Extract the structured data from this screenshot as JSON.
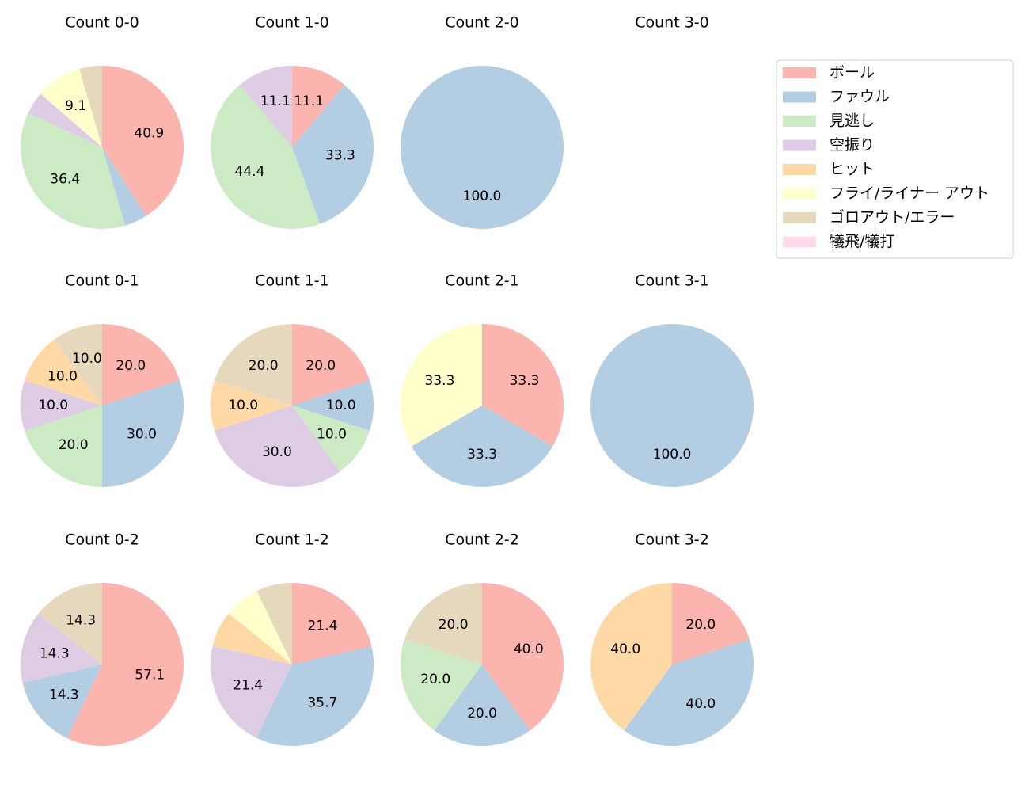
{
  "legend": {
    "position": "top-right",
    "items": [
      {
        "name": "ボール",
        "color": "#fbb4ae"
      },
      {
        "name": "ファウル",
        "color": "#b3cde3"
      },
      {
        "name": "見逃し",
        "color": "#ccebc5"
      },
      {
        "name": "空振り",
        "color": "#decbe4"
      },
      {
        "name": "ヒット",
        "color": "#fed9a6"
      },
      {
        "name": "フライ/ライナー アウト",
        "color": "#ffffcc"
      },
      {
        "name": "ゴロアウト/エラー",
        "color": "#e5d8bd"
      },
      {
        "name": "犠飛/犠打",
        "color": "#fddaec"
      }
    ]
  },
  "chart_data": [
    {
      "type": "pie",
      "title": "Count 0-0",
      "values": [
        40.9,
        4.5,
        36.4,
        4.5,
        0,
        9.1,
        4.5,
        0
      ],
      "labels": [
        "40.9",
        "",
        "36.4",
        "",
        "",
        "9.1",
        "",
        ""
      ]
    },
    {
      "type": "pie",
      "title": "Count 1-0",
      "values": [
        11.1,
        33.3,
        44.4,
        11.1,
        0,
        0,
        0,
        0
      ],
      "labels": [
        "11.1",
        "33.3",
        "44.4",
        "11.1",
        "",
        "",
        "",
        ""
      ]
    },
    {
      "type": "pie",
      "title": "Count 2-0",
      "values": [
        0,
        100,
        0,
        0,
        0,
        0,
        0,
        0
      ],
      "labels": [
        "",
        "100.0",
        "",
        "",
        "",
        "",
        "",
        ""
      ]
    },
    {
      "type": "pie",
      "title": "Count 3-0",
      "values": [
        0,
        0,
        0,
        0,
        0,
        0,
        0,
        0
      ],
      "labels": [
        "",
        "",
        "",
        "",
        "",
        "",
        "",
        ""
      ]
    },
    {
      "type": "pie",
      "title": "Count 0-1",
      "values": [
        20,
        30,
        20,
        10,
        10,
        0,
        10,
        0
      ],
      "labels": [
        "20.0",
        "30.0",
        "20.0",
        "10.0",
        "10.0",
        "",
        "10.0",
        ""
      ]
    },
    {
      "type": "pie",
      "title": "Count 1-1",
      "values": [
        20,
        10,
        10,
        30,
        10,
        0,
        20,
        0
      ],
      "labels": [
        "20.0",
        "10.0",
        "10.0",
        "30.0",
        "10.0",
        "",
        "20.0",
        ""
      ]
    },
    {
      "type": "pie",
      "title": "Count 2-1",
      "values": [
        33.3,
        33.3,
        0,
        0,
        0,
        33.3,
        0,
        0
      ],
      "labels": [
        "33.3",
        "33.3",
        "",
        "",
        "",
        "33.3",
        "",
        ""
      ]
    },
    {
      "type": "pie",
      "title": "Count 3-1",
      "values": [
        0,
        100,
        0,
        0,
        0,
        0,
        0,
        0
      ],
      "labels": [
        "",
        "100.0",
        "",
        "",
        "",
        "",
        "",
        ""
      ]
    },
    {
      "type": "pie",
      "title": "Count 0-2",
      "values": [
        57.1,
        14.3,
        0,
        14.3,
        0,
        0,
        14.3,
        0
      ],
      "labels": [
        "57.1",
        "14.3",
        "",
        "14.3",
        "",
        "",
        "14.3",
        ""
      ]
    },
    {
      "type": "pie",
      "title": "Count 1-2",
      "values": [
        21.4,
        35.7,
        0,
        21.4,
        7.1,
        7.1,
        7.1,
        0
      ],
      "labels": [
        "21.4",
        "35.7",
        "",
        "21.4",
        "",
        "",
        "",
        ""
      ]
    },
    {
      "type": "pie",
      "title": "Count 2-2",
      "values": [
        40,
        20,
        20,
        0,
        0,
        0,
        20,
        0
      ],
      "labels": [
        "40.0",
        "20.0",
        "20.0",
        "",
        "",
        "",
        "20.0",
        ""
      ]
    },
    {
      "type": "pie",
      "title": "Count 3-2",
      "values": [
        20,
        40,
        0,
        0,
        40,
        0,
        0,
        0
      ],
      "labels": [
        "20.0",
        "40.0",
        "",
        "",
        "40.0",
        "",
        "",
        ""
      ]
    }
  ]
}
